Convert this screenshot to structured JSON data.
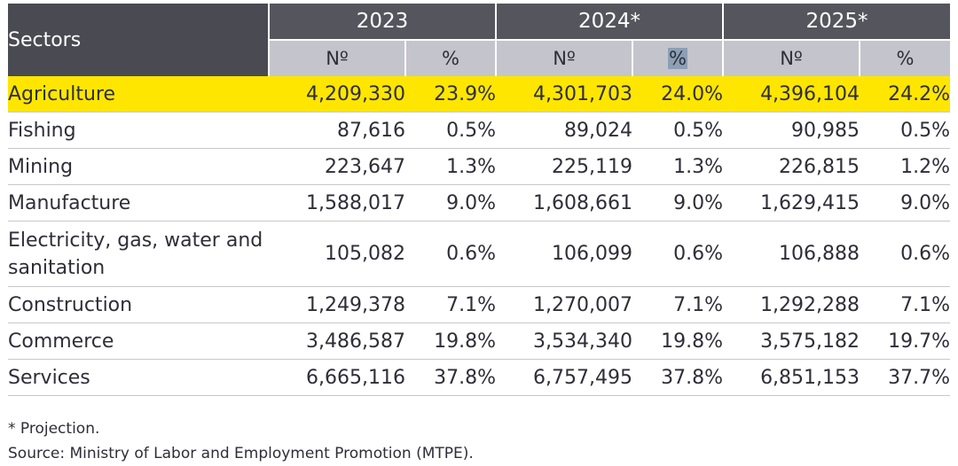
{
  "table": {
    "sectors_header": "Sectors",
    "years": [
      "2023",
      "2024*",
      "2025*"
    ],
    "subheaders": [
      "Nº",
      "%",
      "Nº",
      "%",
      "Nº",
      "%"
    ],
    "rows": [
      {
        "sector": "Agriculture",
        "values": [
          "4,209,330",
          "23.9%",
          "4,301,703",
          "24.0%",
          "4,396,104",
          "24.2%"
        ]
      },
      {
        "sector": "Fishing",
        "values": [
          "87,616",
          "0.5%",
          "89,024",
          "0.5%",
          "90,985",
          "0.5%"
        ]
      },
      {
        "sector": "Mining",
        "values": [
          "223,647",
          "1.3%",
          "225,119",
          "1.3%",
          "226,815",
          "1.2%"
        ]
      },
      {
        "sector": "Manufacture",
        "values": [
          "1,588,017",
          "9.0%",
          "1,608,661",
          "9.0%",
          "1,629,415",
          "9.0%"
        ]
      },
      {
        "sector": "Electricity, gas, water and sanitation",
        "values": [
          "105,082",
          "0.6%",
          "106,099",
          "0.6%",
          "106,888",
          "0.6%"
        ]
      },
      {
        "sector": "Construction",
        "values": [
          "1,249,378",
          "7.1%",
          "1,270,007",
          "7.1%",
          "1,292,288",
          "7.1%"
        ]
      },
      {
        "sector": "Commerce",
        "values": [
          "3,486,587",
          "19.8%",
          "3,534,340",
          "19.8%",
          "3,575,182",
          "19.7%"
        ]
      },
      {
        "sector": "Services",
        "values": [
          "6,665,116",
          "37.8%",
          "6,757,495",
          "37.8%",
          "6,851,153",
          "37.7%"
        ]
      }
    ]
  },
  "notes": {
    "projection": "* Projection.",
    "source": "Source: Ministry of Labor and Employment Promotion (MTPE)."
  },
  "colors": {
    "header_dark": "#4a4a53",
    "header_sub": "#c4c4cc",
    "highlight": "#ffe600",
    "selection": "#8c9fb5"
  }
}
